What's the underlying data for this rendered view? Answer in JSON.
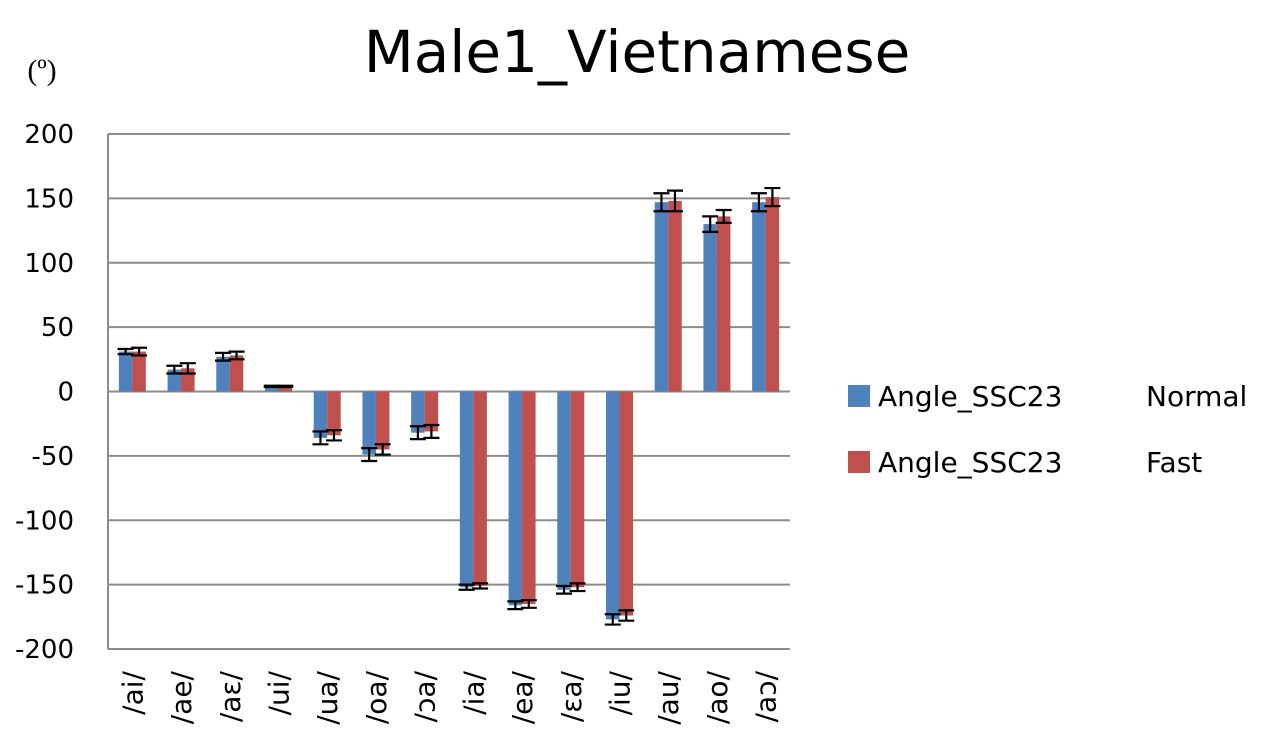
{
  "chart_data": {
    "type": "bar",
    "title": "Male1_Vietnamese",
    "unit_label": "(º)",
    "categories": [
      "/ai/",
      "/ae/",
      "/aɛ/",
      "/ui/",
      "/ua/",
      "/oa/",
      "/ɔa/",
      "/ia/",
      "/ea/",
      "/ɛa/",
      "/iu/",
      "/au/",
      "/ao/",
      "/aɔ/"
    ],
    "ylim": [
      -200,
      200
    ],
    "yticks": [
      200,
      150,
      100,
      50,
      0,
      -50,
      -100,
      -150,
      -200
    ],
    "grid": true,
    "legend_position": "right",
    "series": [
      {
        "name": "Angle_SSC23",
        "condition": "Normal",
        "color": "#4f81bd",
        "values": [
          31,
          17,
          27,
          4,
          -36,
          -49,
          -32,
          -152,
          -166,
          -154,
          -177,
          147,
          130,
          147
        ],
        "errors": [
          2,
          3,
          3,
          0.5,
          5,
          5,
          5,
          2,
          3,
          3,
          4,
          7,
          6,
          7
        ]
      },
      {
        "name": "Angle_SSC23",
        "condition": "Fast",
        "color": "#c0504d",
        "values": [
          31,
          18,
          28,
          4,
          -34,
          -45,
          -31,
          -151,
          -165,
          -152,
          -174,
          148,
          136,
          151
        ],
        "errors": [
          3,
          4,
          3,
          0.5,
          4,
          4,
          5,
          2,
          3,
          3,
          4,
          8,
          5,
          7
        ]
      }
    ]
  }
}
